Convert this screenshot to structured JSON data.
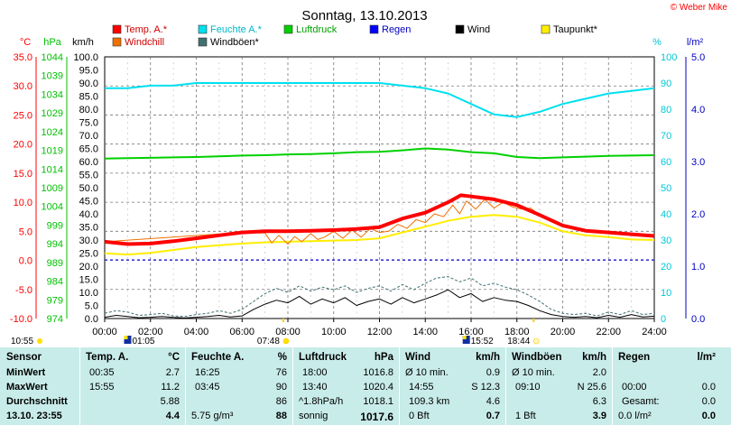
{
  "colors": {
    "temp": "#ff0000",
    "humidity": "#00e0f0",
    "pressure": "#00d000",
    "rain": "#0000ff",
    "wind": "#000000",
    "dewpoint": "#ffee00",
    "windchill": "#f07000",
    "gust": "#407070",
    "temp_axis": "#ff0000",
    "pressure_axis": "#00c000",
    "humidity_axis": "#00c8d8",
    "rain_axis": "#0000c0",
    "stats_bg": "#c8ecea"
  },
  "header": {
    "title": "Sonntag, 13.10.2013",
    "credit": "© Weber Mike"
  },
  "axis_units": {
    "temp": "°C",
    "pressure": "hPa",
    "wind": "km/h",
    "humidity": "%",
    "rain": "l/m²"
  },
  "chart_data": {
    "type": "line",
    "title": "Sonntag, 13.10.2013",
    "x_unit": "hours",
    "x_ticks": [
      "00:00",
      "02:00",
      "04:00",
      "06:00",
      "08:00",
      "10:00",
      "12:00",
      "14:00",
      "16:00",
      "18:00",
      "20:00",
      "22:00",
      "24:00"
    ],
    "xlim": [
      0,
      24
    ],
    "grid": true,
    "legend_position": "top",
    "axes": {
      "temp": {
        "label": "°C",
        "ylim": [
          -10,
          35
        ],
        "ticks": [
          "35.0",
          "30.0",
          "25.0",
          "20.0",
          "15.0",
          "10.0",
          "5.0",
          "0.0",
          "-5.0",
          "-10.0"
        ]
      },
      "pressure": {
        "label": "hPa",
        "ylim": [
          974,
          1044
        ],
        "ticks": [
          "1044",
          "1039",
          "1034",
          "1029",
          "1024",
          "1019",
          "1014",
          "1009",
          "1004",
          "999",
          "994",
          "989",
          "984",
          "979",
          "974"
        ]
      },
      "wind": {
        "label": "km/h",
        "ylim": [
          0,
          100
        ],
        "ticks": [
          "100.0",
          "95.0",
          "90.0",
          "85.0",
          "80.0",
          "75.0",
          "70.0",
          "65.0",
          "60.0",
          "55.0",
          "50.0",
          "45.0",
          "40.0",
          "35.0",
          "30.0",
          "25.0",
          "20.0",
          "15.0",
          "10.0",
          "5.0",
          "0.0"
        ]
      },
      "humidity": {
        "label": "%",
        "ylim": [
          0,
          100
        ],
        "ticks": [
          "100",
          "90",
          "80",
          "70",
          "60",
          "50",
          "40",
          "30",
          "20",
          "10",
          "0"
        ]
      },
      "rain": {
        "label": "l/m²",
        "ylim": [
          0,
          5
        ],
        "ticks": [
          "5.0",
          "4.0",
          "3.0",
          "2.0",
          "1.0",
          "0.0"
        ]
      }
    },
    "series": [
      {
        "name": "Temp. A.*",
        "key": "temp",
        "axis": "temp",
        "x": [
          0,
          1,
          2,
          3,
          4,
          5,
          6,
          7,
          8,
          9,
          10,
          11,
          12,
          13,
          14,
          15,
          15.55,
          16,
          17,
          18,
          19,
          20,
          21,
          22,
          23,
          24
        ],
        "values": [
          3.2,
          2.8,
          2.9,
          3.3,
          3.8,
          4.3,
          4.8,
          5.0,
          5.0,
          5.1,
          5.2,
          5.4,
          5.7,
          7.2,
          8.2,
          10.0,
          11.2,
          11.0,
          10.5,
          9.5,
          7.8,
          6.0,
          5.1,
          4.8,
          4.5,
          4.2
        ]
      },
      {
        "name": "Feuchte A.*",
        "key": "humidity",
        "axis": "humidity",
        "x": [
          0,
          1,
          2,
          3,
          4,
          5,
          6,
          7,
          8,
          9,
          10,
          11,
          12,
          13,
          14,
          15,
          16,
          17,
          18,
          19,
          20,
          21,
          22,
          23,
          24
        ],
        "values": [
          88,
          88,
          89,
          89,
          90,
          90,
          90,
          90,
          90,
          90,
          90,
          90,
          90,
          89,
          88,
          86,
          82,
          78,
          77,
          79,
          82,
          84,
          86,
          87,
          88
        ]
      },
      {
        "name": "Luftdruck",
        "key": "pressure",
        "axis": "pressure",
        "x": [
          0,
          1,
          2,
          3,
          4,
          5,
          6,
          7,
          8,
          9,
          10,
          11,
          12,
          13,
          14,
          15,
          16,
          17,
          18,
          19,
          20,
          21,
          22,
          23,
          24
        ],
        "values": [
          1016.8,
          1016.9,
          1017.0,
          1017.1,
          1017.2,
          1017.4,
          1017.6,
          1017.7,
          1017.9,
          1018.0,
          1018.2,
          1018.5,
          1018.6,
          1019.0,
          1019.5,
          1019.2,
          1018.5,
          1018.2,
          1017.2,
          1016.9,
          1017.1,
          1017.3,
          1017.5,
          1017.6,
          1017.7
        ]
      },
      {
        "name": "Regen",
        "key": "rain",
        "axis": "rain",
        "x": [
          0,
          24
        ],
        "values": [
          0,
          0
        ]
      },
      {
        "name": "Wind",
        "key": "wind",
        "axis": "wind",
        "x": [
          0,
          0.5,
          1,
          1.5,
          2,
          2.5,
          3,
          3.5,
          4,
          4.5,
          5,
          5.5,
          6,
          6.5,
          7,
          7.5,
          8,
          8.5,
          9,
          9.5,
          10,
          10.5,
          11,
          11.5,
          12,
          12.5,
          13,
          13.5,
          14,
          14.5,
          15,
          15.5,
          16,
          16.5,
          17,
          17.5,
          18,
          18.5,
          19,
          19.5,
          20,
          20.5,
          21,
          21.5,
          22,
          22.5,
          23,
          23.5,
          24
        ],
        "values": [
          0.5,
          1.2,
          0.8,
          0.3,
          0.5,
          0.8,
          0.4,
          0.2,
          0.5,
          0.8,
          1.2,
          0.6,
          1.0,
          3.5,
          5.5,
          7.0,
          6.0,
          8.5,
          5.5,
          7.5,
          6.0,
          8.0,
          5.0,
          6.5,
          7.5,
          5.5,
          8.0,
          6.0,
          7.5,
          9.0,
          11.0,
          8.0,
          9.5,
          6.5,
          8.0,
          7.0,
          6.5,
          5.0,
          3.0,
          1.5,
          0.8,
          0.5,
          0.8,
          0.3,
          1.2,
          0.5,
          1.5,
          0.6,
          0.9
        ]
      },
      {
        "name": "Taupunkt*",
        "key": "dewpoint",
        "axis": "temp",
        "x": [
          0,
          1,
          2,
          3,
          4,
          5,
          6,
          7,
          8,
          9,
          10,
          11,
          12,
          13,
          14,
          15,
          16,
          17,
          18,
          19,
          20,
          21,
          22,
          23,
          24
        ],
        "values": [
          1.2,
          1.0,
          1.3,
          1.8,
          2.3,
          2.6,
          2.9,
          3.1,
          3.2,
          3.3,
          3.4,
          3.5,
          3.8,
          4.8,
          5.8,
          6.8,
          7.5,
          7.8,
          7.5,
          6.5,
          5.0,
          4.3,
          4.0,
          3.6,
          3.5
        ]
      },
      {
        "name": "Windchill",
        "key": "windchill",
        "axis": "temp",
        "x": [
          0,
          6,
          7,
          7.3,
          7.6,
          8,
          8.3,
          8.6,
          9,
          9.3,
          9.6,
          10,
          10.4,
          10.8,
          11.2,
          11.6,
          12,
          12.4,
          12.8,
          13.2,
          13.6,
          14,
          14.4,
          14.8,
          15.2,
          15.5,
          15.8,
          16.2,
          16.6,
          17,
          17.4,
          17.8,
          18.2,
          18.6,
          19,
          20,
          21,
          22,
          23,
          24
        ],
        "values": [
          3.2,
          4.8,
          4.7,
          3.0,
          4.3,
          2.8,
          4.1,
          3.2,
          4.6,
          3.6,
          4.0,
          5.0,
          3.8,
          5.2,
          4.0,
          5.5,
          4.8,
          5.0,
          6.2,
          5.5,
          7.0,
          6.5,
          8.0,
          7.5,
          9.5,
          8.0,
          10.2,
          8.8,
          10.5,
          9.0,
          10.0,
          9.2,
          8.8,
          9.0,
          7.8,
          6.0,
          5.1,
          4.8,
          4.5,
          4.2
        ]
      },
      {
        "name": "Windböen*",
        "key": "gust",
        "axis": "wind",
        "x": [
          0,
          0.5,
          1,
          1.5,
          2,
          2.5,
          3,
          3.5,
          4,
          4.5,
          5,
          5.5,
          6,
          6.5,
          7,
          7.5,
          8,
          8.5,
          9,
          9.5,
          10,
          10.5,
          11,
          11.5,
          12,
          12.5,
          13,
          13.5,
          14,
          14.5,
          15,
          15.5,
          16,
          16.5,
          17,
          17.5,
          18,
          18.5,
          19,
          19.5,
          20,
          20.5,
          21,
          21.5,
          22,
          22.5,
          23,
          23.5,
          24
        ],
        "values": [
          2.0,
          3.0,
          2.5,
          1.2,
          1.5,
          2.0,
          1.0,
          0.8,
          1.5,
          2.0,
          3.0,
          2.0,
          3.5,
          6.5,
          9.5,
          11.5,
          10.0,
          12.5,
          10.5,
          12.0,
          11.0,
          12.5,
          10.0,
          11.5,
          12.5,
          10.5,
          13.0,
          11.0,
          13.5,
          15.5,
          16.0,
          14.0,
          15.5,
          12.5,
          13.5,
          12.0,
          11.0,
          9.0,
          6.5,
          3.5,
          2.0,
          1.5,
          2.0,
          1.0,
          2.5,
          1.5,
          3.0,
          1.5,
          2.0
        ]
      }
    ],
    "markers": [
      {
        "label": "10:55",
        "kind": "sunrise-left"
      },
      {
        "label": "01:05",
        "time": 1.083,
        "kind": "dewpoint-min"
      },
      {
        "label": "07:48",
        "time": 7.8,
        "kind": "sunrise"
      },
      {
        "label": "15:52",
        "time": 15.87,
        "kind": "max"
      },
      {
        "label": "18:44",
        "time": 18.73,
        "kind": "sunset"
      }
    ]
  },
  "stats": {
    "sensor": {
      "header": "Sensor",
      "min": "MinWert",
      "max": "MaxWert",
      "avg": "Durchschnitt",
      "now": "13.10. 23:55"
    },
    "temp": {
      "header": "Temp. A.",
      "unit": "°C",
      "min_time": "00:35",
      "min_val": "2.7",
      "max_time": "15:55",
      "max_val": "11.2",
      "avg_val": "5.88",
      "now_val": "4.4"
    },
    "humidity": {
      "header": "Feuchte A.",
      "unit": "%",
      "min_time": "16:25",
      "min_val": "76",
      "max_time": "03:45",
      "max_val": "90",
      "avg_val": "86",
      "now_extra": "5.75 g/m³",
      "now_val": "88"
    },
    "pressure": {
      "header": "Luftdruck",
      "unit": "hPa",
      "min_time": "18:00",
      "min_val": "1016.8",
      "max_time": "13:40",
      "max_val": "1020.4",
      "trend": "^1.8hPa/h",
      "avg_val": "1018.1",
      "forecast": "sonnig",
      "now_val": "1017.6"
    },
    "wind": {
      "header": "Wind",
      "unit": "km/h",
      "row1_label": "Ø 10 min.",
      "row1_val": "0.9",
      "row2_label": "14:55",
      "row2_val": "S 12.3",
      "row3_label": "109.3 km",
      "row3_val": "4.6",
      "row4_label": "0 Bft",
      "now_val": "0.7"
    },
    "gust": {
      "header": "Windböen",
      "unit": "km/h",
      "row1_label": "Ø 10 min.",
      "row1_val": "2.0",
      "row2_label": "09:10",
      "row2_val": "N 25.6",
      "row3_val": "6.3",
      "row4_label": "1 Bft",
      "now_val": "3.9"
    },
    "rain": {
      "header": "Regen",
      "unit": "l/m²",
      "row2_label": "00:00",
      "row2_val": "0.0",
      "row3_label": "Gesamt:",
      "row3_val": "0.0",
      "row4_label": "0.0 l/m²",
      "now_val": "0.0"
    }
  }
}
